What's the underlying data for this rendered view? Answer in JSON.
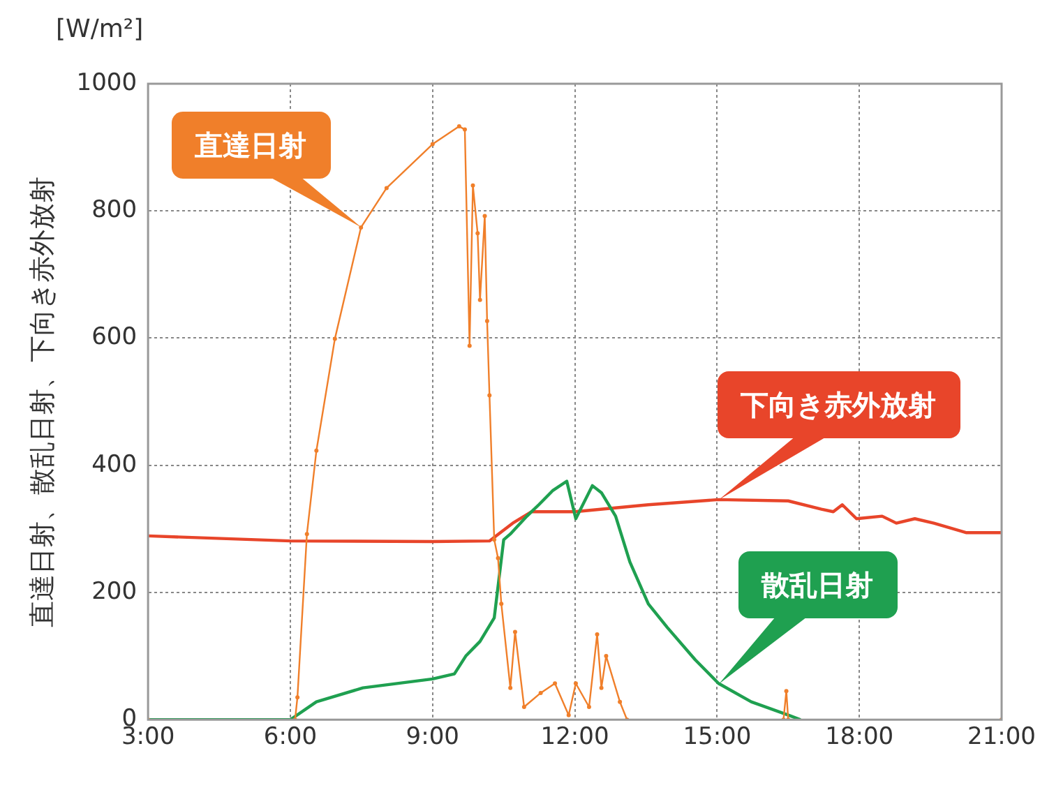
{
  "chart_data": {
    "type": "line",
    "ylabel": "直達日射、散乱日射、下向き赤外放射",
    "annotations": [
      "[W/m²]"
    ],
    "xlim": [
      3,
      21
    ],
    "xticks": [
      {
        "value": 3,
        "label": "3:00"
      },
      {
        "value": 6,
        "label": "6:00"
      },
      {
        "value": 9,
        "label": "9:00"
      },
      {
        "value": 12,
        "label": "12:00"
      },
      {
        "value": 15,
        "label": "15:00"
      },
      {
        "value": 18,
        "label": "18:00"
      },
      {
        "value": 21,
        "label": "21:00"
      }
    ],
    "ylim": [
      0,
      1000
    ],
    "yticks": [
      0,
      200,
      400,
      600,
      800,
      1000
    ],
    "grid": true,
    "legend": false,
    "marker": "none",
    "line_style": "solid",
    "series": [
      {
        "name": "直達日射",
        "color": "#f07f2a",
        "marker": "circle",
        "x": [
          3,
          6.1,
          6.15,
          6.35,
          6.55,
          6.94,
          7.49,
          8.03,
          9.0,
          9.56,
          9.68,
          9.78,
          9.85,
          9.95,
          10.0,
          10.1,
          10.15,
          10.2,
          10.3,
          10.38,
          10.45,
          10.64,
          10.74,
          10.93,
          11.28,
          11.58,
          11.87,
          12.02,
          12.3,
          12.47,
          12.56,
          12.66,
          12.95,
          13.1,
          16.4,
          16.46,
          16.5,
          21
        ],
        "values": [
          0,
          0,
          35,
          292,
          423,
          599,
          774,
          836,
          905,
          933,
          928,
          588,
          840,
          765,
          660,
          792,
          627,
          510,
          283,
          254,
          182,
          50,
          138,
          20,
          42,
          57,
          7,
          57,
          20,
          134,
          50,
          100,
          28,
          0,
          0,
          45,
          0,
          0
        ]
      },
      {
        "name": "散乱日射",
        "color": "#1fa050",
        "x": [
          3,
          6.0,
          6.55,
          7.53,
          9.0,
          9.46,
          9.7,
          10.0,
          10.3,
          10.5,
          10.64,
          10.99,
          11.24,
          11.53,
          11.83,
          12.02,
          12.37,
          12.56,
          12.86,
          13.16,
          13.55,
          13.95,
          14.54,
          15.03,
          15.72,
          16.51,
          16.76
        ],
        "values": [
          0,
          0,
          28,
          50,
          64,
          72,
          100,
          123,
          160,
          283,
          292,
          320,
          338,
          360,
          375,
          316,
          368,
          357,
          320,
          248,
          182,
          145,
          94,
          57,
          28,
          7,
          0
        ]
      },
      {
        "name": "下向き赤外放射",
        "color": "#e8452a",
        "x": [
          3,
          6.0,
          9.0,
          10.2,
          10.69,
          11.09,
          12.0,
          13.55,
          15.03,
          16.5,
          17.2,
          17.45,
          17.64,
          17.94,
          18.48,
          18.78,
          19.17,
          19.57,
          20.26,
          21
        ],
        "values": [
          289,
          281,
          280,
          281,
          309,
          327,
          327,
          338,
          346,
          344,
          331,
          327,
          338,
          316,
          320,
          309,
          316,
          309,
          294,
          294
        ]
      }
    ]
  }
}
